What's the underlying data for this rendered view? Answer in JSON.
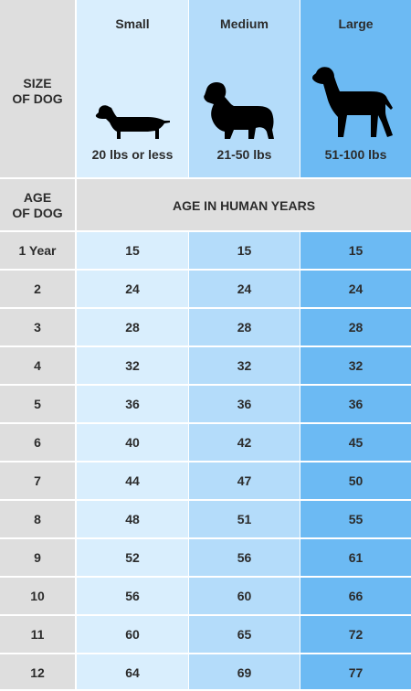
{
  "header": {
    "size_label": "SIZE\nOF DOG",
    "age_label": "AGE\nOF DOG",
    "age_band": "AGE IN HUMAN YEARS"
  },
  "sizes": [
    {
      "name": "Small",
      "weight": "20 lbs or less",
      "icon": "dachshund-icon"
    },
    {
      "name": "Medium",
      "weight": "21-50 lbs",
      "icon": "spaniel-icon"
    },
    {
      "name": "Large",
      "weight": "51-100 lbs",
      "icon": "pointer-icon"
    }
  ],
  "rows": [
    {
      "age": "1 Year",
      "small": "15",
      "medium": "15",
      "large": "15"
    },
    {
      "age": "2",
      "small": "24",
      "medium": "24",
      "large": "24"
    },
    {
      "age": "3",
      "small": "28",
      "medium": "28",
      "large": "28"
    },
    {
      "age": "4",
      "small": "32",
      "medium": "32",
      "large": "32"
    },
    {
      "age": "5",
      "small": "36",
      "medium": "36",
      "large": "36"
    },
    {
      "age": "6",
      "small": "40",
      "medium": "42",
      "large": "45"
    },
    {
      "age": "7",
      "small": "44",
      "medium": "47",
      "large": "50"
    },
    {
      "age": "8",
      "small": "48",
      "medium": "51",
      "large": "55"
    },
    {
      "age": "9",
      "small": "52",
      "medium": "56",
      "large": "61"
    },
    {
      "age": "10",
      "small": "56",
      "medium": "60",
      "large": "66"
    },
    {
      "age": "11",
      "small": "60",
      "medium": "65",
      "large": "72"
    },
    {
      "age": "12",
      "small": "64",
      "medium": "69",
      "large": "77"
    }
  ],
  "colors": {
    "label_col": "#dedede",
    "small_col": "#d9eefd",
    "medium_col": "#b4dcfa",
    "large_col": "#6cbaf3",
    "text": "#2c2c2c"
  }
}
